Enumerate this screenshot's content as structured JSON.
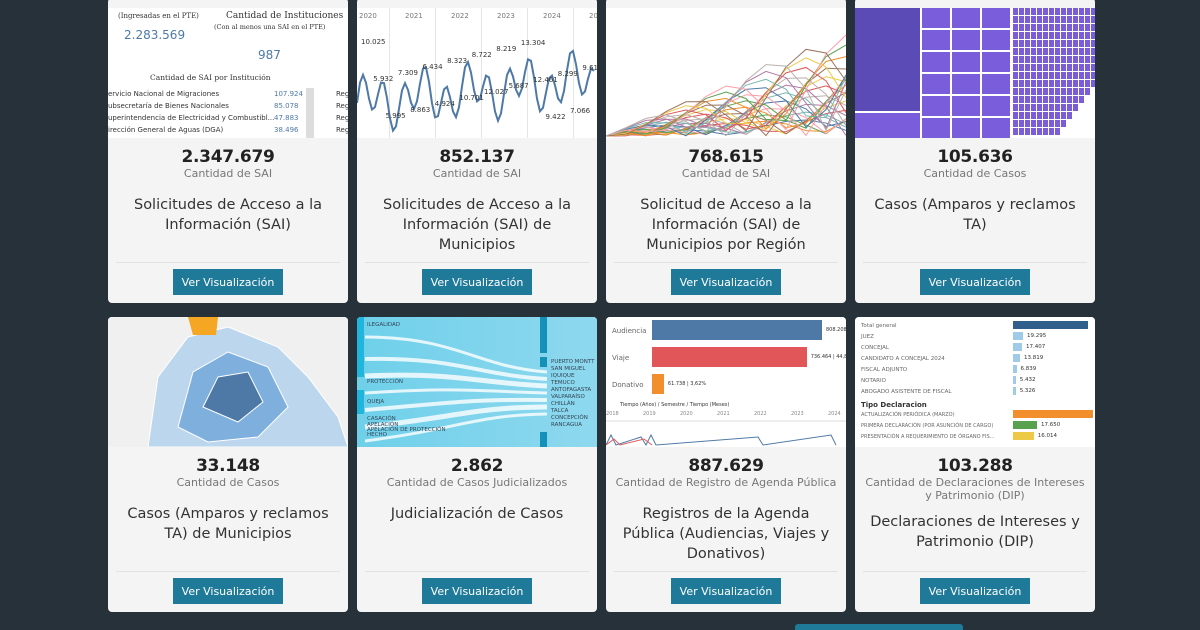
{
  "cards": [
    {
      "value": "2.347.679",
      "metric": "Cantidad de SAI",
      "title": "Solicitudes de Acceso a la Información (SAI)",
      "button": "Ver Visualización"
    },
    {
      "value": "852.137",
      "metric": "Cantidad de SAI",
      "title": "Solicitudes de Acceso a la Información (SAI) de Municipios",
      "button": "Ver Visualización"
    },
    {
      "value": "768.615",
      "metric": "Cantidad de SAI",
      "title": "Solicitud de Acceso a la Información (SAI) de Municipios por Región",
      "button": "Ver Visualización"
    },
    {
      "value": "105.636",
      "metric": "Cantidad de Casos",
      "title": "Casos (Amparos y reclamos TA)",
      "button": "Ver Visualización"
    },
    {
      "value": "33.148",
      "metric": "Cantidad de Casos",
      "title": "Casos (Amparos y reclamos TA) de Municipios",
      "button": "Ver Visualización"
    },
    {
      "value": "2.862",
      "metric": "Cantidad de Casos Judicializados",
      "title": "Judicialización de Casos",
      "button": "Ver Visualización"
    },
    {
      "value": "887.629",
      "metric": "Cantidad de Registro de Agenda Pública",
      "title": "Registros de la Agenda Pública (Audiencias, Viajes y Donativos)",
      "button": "Ver Visualización"
    },
    {
      "value": "103.288",
      "metric": "Cantidad de Declaraciones de Intereses y Patrimonio (DIP)",
      "title": "Declaraciones de Intereses y Patrimonio (DIP)",
      "button": "Ver Visualización"
    }
  ],
  "thumb1": {
    "total_sub": "(Ingresadas en el PTE)",
    "total": "2.283.569",
    "inst_title": "Cantidad de Instituciones",
    "inst_sub": "(Con al menos una SAI en el PTE)",
    "inst": "987",
    "table_title": "Cantidad de SAI por Institución",
    "rows": [
      [
        "ervicio Nacional de Migraciones",
        "107.924"
      ],
      [
        "ubsecretaría de Bienes Nacionales",
        "85.078"
      ],
      [
        "uperintendencia de Electricidad y Combustibl...",
        "47.883"
      ],
      [
        "irección General de Aguas (DGA)",
        "38.496"
      ]
    ]
  },
  "thumb2": {
    "years": [
      "2020",
      "2021",
      "2022",
      "2023",
      "2024",
      "2025"
    ],
    "labels": [
      "10.025",
      "5.932",
      "5.995",
      "7.309",
      "8.863",
      "6.434",
      "4.924",
      "8.323",
      "10.701",
      "8.722",
      "12.027",
      "8.219",
      "5.687",
      "13.304",
      "12.461",
      "9.422",
      "8.299",
      "7.066",
      "9.615"
    ]
  },
  "thumb6": {
    "left": [
      "ILEGALIDAD",
      "PROTECCIÓN",
      "QUEJA",
      "CASACIÓN",
      "APELACIÓN",
      "APELACIÓN DE PROTECCIÓN",
      "HECHO"
    ],
    "right": [
      "PUERTO MONTT",
      "SAN MIGUEL",
      "IQUIQUE",
      "TEMUCO",
      "ANTOFAGASTA",
      "VALPARAÍSO",
      "CHILLÁN",
      "TALCA",
      "CONCEPCIÓN",
      "RANCAGUA"
    ]
  },
  "thumb7": {
    "bars": [
      {
        "label": "Audiencia",
        "value": "808.208",
        "pct": 100,
        "color": "#4e79a7"
      },
      {
        "label": "Viaje",
        "value": "736.464 | 44,81%",
        "pct": 91,
        "color": "#e15759"
      },
      {
        "label": "Donativo",
        "value": "61.738 | 3,62%",
        "pct": 7,
        "color": "#f28e2b"
      }
    ],
    "axis_title": "Tiempo (Años) / Semestre / Tiempo (Meses)",
    "years": [
      "2018",
      "2019",
      "2020",
      "2021",
      "2022",
      "2023",
      "2024"
    ]
  },
  "thumb8": {
    "rows": [
      [
        "Total general",
        ""
      ],
      [
        "JUEZ",
        "19.295"
      ],
      [
        "CONCEJAL",
        "17.407"
      ],
      [
        "CANDIDATO A CONCEJAL 2024",
        "13.819"
      ],
      [
        "FISCAL ADJUNTO",
        "6.839"
      ],
      [
        "NOTARIO",
        "5.432"
      ],
      [
        "ABOGADO ASISTENTE DE FISCAL",
        "5.326"
      ]
    ],
    "section": "Tipo Declaracion",
    "types": [
      [
        "ACTUALIZACIÓN PERIÓDICA (MARZO)",
        "",
        "#f28e2b",
        100
      ],
      [
        "PRIMERA DECLARACIÓN (POR ASUNCIÓN DE CARGO)",
        "17.650",
        "#59a14f",
        30
      ],
      [
        "PRESENTACIÓN A REQUERIMIENTO DE ÓRGANO FIS...",
        "16.014",
        "#edc948",
        26
      ]
    ]
  }
}
